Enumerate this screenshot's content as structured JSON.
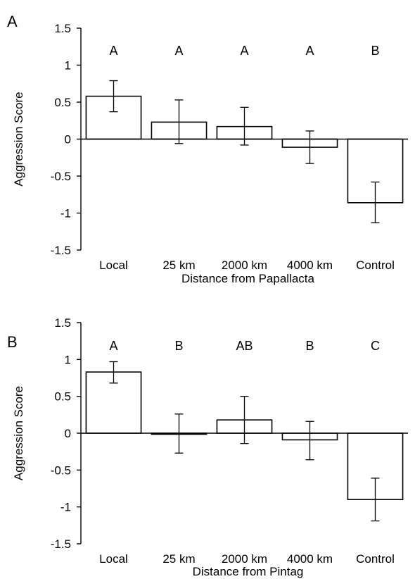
{
  "chart_data": [
    {
      "type": "bar",
      "panel": "A",
      "categories": [
        "Local",
        "25 km",
        "2000 km",
        "4000 km",
        "Control"
      ],
      "values": [
        0.58,
        0.23,
        0.17,
        -0.11,
        -0.86
      ],
      "errors_upper": [
        0.79,
        0.53,
        0.43,
        0.11,
        -0.58
      ],
      "errors_lower": [
        0.37,
        -0.06,
        -0.08,
        -0.33,
        -1.13
      ],
      "significance": [
        "A",
        "A",
        "A",
        "A",
        "B"
      ],
      "xlabel": "Distance from Papallacta",
      "ylabel": "Aggression Score",
      "ylim": [
        -1.5,
        1.5
      ],
      "yticks": [
        1.5,
        1,
        0.5,
        0,
        -0.5,
        -1,
        -1.5
      ],
      "ytick_labels": [
        "1.5",
        "1",
        "0.5",
        "0",
        "-0.5",
        "-1",
        "-1.5"
      ]
    },
    {
      "type": "bar",
      "panel": "B",
      "categories": [
        "Local",
        "25 km",
        "2000 km",
        "4000 km",
        "Control"
      ],
      "values": [
        0.83,
        -0.01,
        0.18,
        -0.09,
        -0.9
      ],
      "errors_upper": [
        0.97,
        0.26,
        0.5,
        0.16,
        -0.61
      ],
      "errors_lower": [
        0.68,
        -0.27,
        -0.14,
        -0.36,
        -1.19
      ],
      "significance": [
        "A",
        "B",
        "AB",
        "B",
        "C"
      ],
      "xlabel": "Distance from Pintag",
      "ylabel": "Aggression Score",
      "ylim": [
        -1.5,
        1.5
      ],
      "yticks": [
        1.5,
        1,
        0.5,
        0,
        -0.5,
        -1,
        -1.5
      ],
      "ytick_labels": [
        "1.5",
        "1",
        "0.5",
        "0",
        "-0.5",
        "-1",
        "-1.5"
      ]
    }
  ]
}
